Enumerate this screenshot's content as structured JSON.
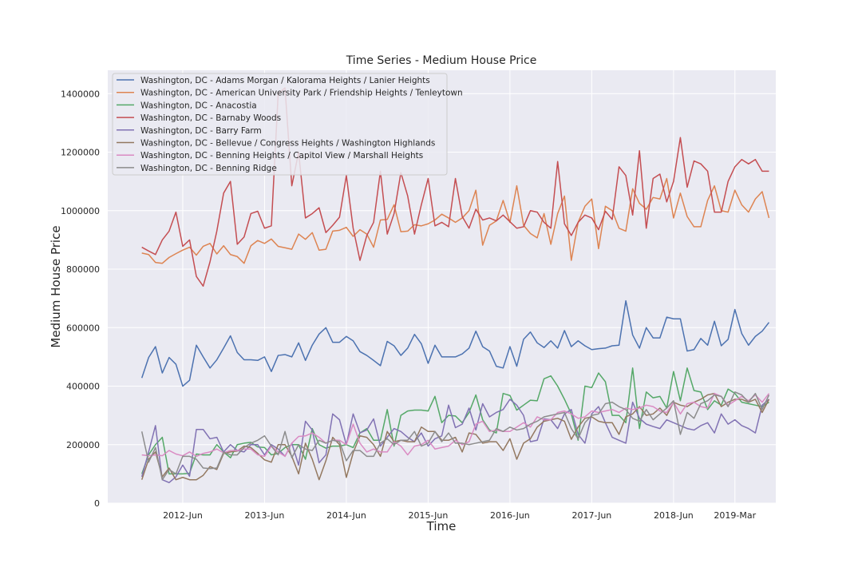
{
  "chart_data": {
    "type": "line",
    "title": "Time Series - Medium House Price",
    "xlabel": "Time",
    "ylabel": "Medium House Price",
    "ylim": [
      0,
      1480000
    ],
    "y_ticks": [
      0,
      200000,
      400000,
      600000,
      800000,
      1000000,
      1200000,
      1400000
    ],
    "y_tick_labels": [
      "0",
      "200000",
      "400000",
      "600000",
      "800000",
      "1000000",
      "1200000",
      "1400000"
    ],
    "x_ticks": [
      "2012-06",
      "2013-06",
      "2014-06",
      "2015-06",
      "2016-06",
      "2017-06",
      "2018-06",
      "2019-03"
    ],
    "x_tick_labels": [
      "2012-Jun",
      "2013-Jun",
      "2014-Jun",
      "2015-Jun",
      "2016-Jun",
      "2017-Jun",
      "2018-Jun",
      "2019-Mar"
    ],
    "xlim": [
      "2011-07",
      "2019-09"
    ],
    "x_start": "2011-12",
    "x_frequency": "monthly",
    "grid": true,
    "legend_position": "top-left",
    "colors": {
      "background": "#eaeaf2",
      "grid": "#ffffff"
    },
    "series": [
      {
        "name": "Washington, DC - Adams Morgan / Kalorama Heights / Lanier Heights",
        "color": "#4c72b0",
        "values": [
          428000,
          498000,
          535000,
          445000,
          498000,
          475000,
          400000,
          420000,
          540000,
          500000,
          462000,
          490000,
          530000,
          572000,
          515000,
          490000,
          490000,
          488000,
          500000,
          450000,
          505000,
          508000,
          500000,
          548000,
          488000,
          540000,
          578000,
          600000,
          550000,
          550000,
          570000,
          555000,
          518000,
          505000,
          488000,
          470000,
          553000,
          538000,
          505000,
          530000,
          577000,
          545000,
          478000,
          540000,
          500000,
          500000,
          500000,
          510000,
          530000,
          588000,
          535000,
          520000,
          468000,
          462000,
          535000,
          468000,
          560000,
          585000,
          548000,
          532000,
          555000,
          530000,
          590000,
          535000,
          555000,
          538000,
          525000,
          528000,
          530000,
          538000,
          540000,
          692000,
          575000,
          530000,
          600000,
          565000,
          565000,
          636000,
          630000,
          630000,
          520000,
          525000,
          563000,
          540000,
          622000,
          538000,
          560000,
          662000,
          580000,
          540000,
          570000,
          588000,
          618000
        ]
      },
      {
        "name": "Washington, DC - American University Park / Friendship Heights / Tenleytown",
        "color": "#dd8452",
        "values": [
          855000,
          850000,
          823000,
          820000,
          840000,
          853000,
          865000,
          875000,
          848000,
          878000,
          888000,
          852000,
          880000,
          850000,
          843000,
          820000,
          880000,
          898000,
          888000,
          903000,
          878000,
          873000,
          868000,
          920000,
          902000,
          925000,
          865000,
          868000,
          930000,
          933000,
          943000,
          912000,
          935000,
          920000,
          875000,
          968000,
          970000,
          1020000,
          928000,
          930000,
          952000,
          948000,
          955000,
          968000,
          988000,
          975000,
          960000,
          975000,
          1000000,
          1070000,
          882000,
          950000,
          965000,
          1035000,
          960000,
          1085000,
          950000,
          922000,
          907000,
          990000,
          885000,
          990000,
          1050000,
          830000,
          960000,
          1015000,
          1040000,
          870000,
          1015000,
          1000000,
          940000,
          930000,
          1075000,
          1025000,
          1005000,
          1045000,
          1040000,
          1110000,
          975000,
          1060000,
          980000,
          945000,
          945000,
          1035000,
          1085000,
          1000000,
          995000,
          1070000,
          1020000,
          995000,
          1040000,
          1065000,
          975000
        ]
      },
      {
        "name": "Washington, DC - Anacostia",
        "color": "#55a868",
        "values": [
          100000,
          165000,
          200000,
          225000,
          100000,
          100000,
          100000,
          102000,
          168000,
          165000,
          165000,
          200000,
          175000,
          155000,
          200000,
          205000,
          208000,
          192000,
          190000,
          165000,
          170000,
          190000,
          200000,
          200000,
          150000,
          255000,
          200000,
          188000,
          195000,
          195000,
          200000,
          190000,
          240000,
          255000,
          215000,
          215000,
          320000,
          195000,
          300000,
          315000,
          318000,
          318000,
          315000,
          365000,
          275000,
          300000,
          298000,
          275000,
          310000,
          370000,
          285000,
          250000,
          240000,
          375000,
          368000,
          318000,
          335000,
          352000,
          350000,
          425000,
          435000,
          400000,
          355000,
          305000,
          215000,
          400000,
          395000,
          445000,
          415000,
          300000,
          300000,
          275000,
          462000,
          255000,
          380000,
          360000,
          365000,
          325000,
          450000,
          350000,
          462000,
          385000,
          380000,
          320000,
          350000,
          335000,
          390000,
          375000,
          345000,
          340000,
          335000,
          330000,
          345000
        ]
      },
      {
        "name": "Washington, DC - Barnaby Woods",
        "color": "#c44e52",
        "values": [
          875000,
          862000,
          850000,
          900000,
          930000,
          995000,
          878000,
          900000,
          775000,
          742000,
          825000,
          930000,
          1060000,
          1100000,
          885000,
          910000,
          990000,
          998000,
          940000,
          948000,
          1400000,
          1420000,
          1085000,
          1200000,
          975000,
          990000,
          1010000,
          925000,
          950000,
          978000,
          1120000,
          940000,
          830000,
          915000,
          960000,
          1135000,
          920000,
          990000,
          1130000,
          1050000,
          920000,
          1020000,
          1110000,
          948000,
          960000,
          945000,
          1110000,
          980000,
          940000,
          1005000,
          968000,
          975000,
          965000,
          985000,
          962000,
          940000,
          945000,
          1000000,
          995000,
          960000,
          940000,
          1168000,
          955000,
          915000,
          960000,
          985000,
          975000,
          935000,
          998000,
          970000,
          1150000,
          1120000,
          985000,
          1205000,
          940000,
          1110000,
          1125000,
          1030000,
          1100000,
          1250000,
          1080000,
          1170000,
          1160000,
          1135000,
          995000,
          995000,
          1100000,
          1150000,
          1175000,
          1160000,
          1175000,
          1135000,
          1135000
        ]
      },
      {
        "name": "Washington, DC - Barry Farm",
        "color": "#8172b3",
        "values": [
          90000,
          175000,
          265000,
          80000,
          70000,
          90000,
          130000,
          92000,
          252000,
          252000,
          220000,
          225000,
          175000,
          200000,
          180000,
          175000,
          200000,
          200000,
          165000,
          200000,
          185000,
          160000,
          205000,
          130000,
          280000,
          250000,
          138000,
          165000,
          305000,
          285000,
          200000,
          305000,
          240000,
          250000,
          288000,
          195000,
          225000,
          255000,
          245000,
          225000,
          210000,
          240000,
          195000,
          220000,
          230000,
          335000,
          258000,
          270000,
          325000,
          250000,
          340000,
          295000,
          310000,
          320000,
          355000,
          335000,
          300000,
          210000,
          215000,
          288000,
          285000,
          255000,
          305000,
          320000,
          235000,
          205000,
          305000,
          330000,
          275000,
          225000,
          215000,
          205000,
          345000,
          290000,
          270000,
          262000,
          255000,
          285000,
          275000,
          265000,
          255000,
          250000,
          265000,
          275000,
          240000,
          305000,
          270000,
          285000,
          265000,
          255000,
          240000,
          335000,
          355000
        ]
      },
      {
        "name": "Washington, DC - Bellevue / Congress Heights / Washington Highlands",
        "color": "#937860",
        "values": [
          80000,
          150000,
          175000,
          90000,
          120000,
          80000,
          88000,
          80000,
          80000,
          95000,
          125000,
          115000,
          170000,
          175000,
          178000,
          195000,
          190000,
          170000,
          148000,
          140000,
          200000,
          200000,
          160000,
          100000,
          205000,
          150000,
          80000,
          145000,
          225000,
          200000,
          88000,
          172000,
          230000,
          225000,
          200000,
          160000,
          245000,
          210000,
          215000,
          210000,
          210000,
          260000,
          245000,
          245000,
          215000,
          215000,
          225000,
          175000,
          240000,
          235000,
          205000,
          210000,
          210000,
          180000,
          220000,
          150000,
          205000,
          220000,
          260000,
          280000,
          285000,
          290000,
          280000,
          218000,
          260000,
          290000,
          295000,
          280000,
          275000,
          275000,
          235000,
          295000,
          305000,
          330000,
          300000,
          305000,
          325000,
          300000,
          345000,
          335000,
          330000,
          345000,
          355000,
          370000,
          375000,
          330000,
          345000,
          355000,
          355000,
          345000,
          355000,
          310000,
          355000
        ]
      },
      {
        "name": "Washington, DC - Benning Heights / Capitol View / Marshall Heights",
        "color": "#da8bc3",
        "values": [
          165000,
          162000,
          165000,
          162000,
          180000,
          168000,
          162000,
          175000,
          160000,
          170000,
          175000,
          185000,
          172000,
          180000,
          180000,
          185000,
          185000,
          165000,
          160000,
          195000,
          175000,
          160000,
          205000,
          228000,
          230000,
          240000,
          225000,
          205000,
          215000,
          215000,
          200000,
          270000,
          205000,
          175000,
          185000,
          175000,
          175000,
          210000,
          195000,
          165000,
          195000,
          200000,
          215000,
          185000,
          190000,
          195000,
          215000,
          200000,
          210000,
          270000,
          280000,
          245000,
          250000,
          245000,
          245000,
          260000,
          275000,
          260000,
          295000,
          285000,
          285000,
          310000,
          315000,
          305000,
          290000,
          295000,
          315000,
          310000,
          315000,
          320000,
          310000,
          325000,
          320000,
          325000,
          335000,
          330000,
          315000,
          310000,
          345000,
          305000,
          340000,
          345000,
          330000,
          325000,
          375000,
          365000,
          335000,
          350000,
          365000,
          350000,
          370000,
          345000,
          375000
        ]
      },
      {
        "name": "Washington, DC - Benning Ridge",
        "color": "#8c8c8c",
        "values": [
          245000,
          140000,
          190000,
          80000,
          115000,
          100000,
          160000,
          160000,
          150000,
          120000,
          118000,
          120000,
          175000,
          165000,
          165000,
          190000,
          205000,
          215000,
          230000,
          195000,
          165000,
          245000,
          155000,
          200000,
          185000,
          180000,
          215000,
          205000,
          215000,
          210000,
          145000,
          180000,
          180000,
          160000,
          160000,
          205000,
          220000,
          200000,
          215000,
          215000,
          245000,
          195000,
          205000,
          245000,
          210000,
          240000,
          205000,
          205000,
          200000,
          205000,
          210000,
          215000,
          255000,
          245000,
          260000,
          250000,
          255000,
          270000,
          280000,
          295000,
          300000,
          305000,
          310000,
          255000,
          220000,
          275000,
          300000,
          305000,
          340000,
          345000,
          330000,
          320000,
          290000,
          280000,
          320000,
          285000,
          305000,
          325000,
          350000,
          235000,
          310000,
          290000,
          340000,
          350000,
          370000,
          365000,
          330000,
          380000,
          370000,
          345000,
          375000,
          320000,
          370000
        ]
      }
    ]
  }
}
